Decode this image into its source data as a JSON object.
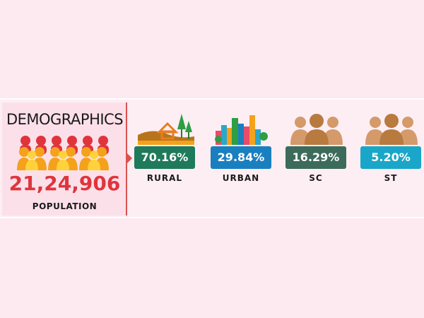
{
  "summary": {
    "title": "DEMOGRAPHICS",
    "population_value": "21,24,906",
    "population_label": "POPULATION",
    "population_value_color": "#e0343c",
    "icon": "people-group-icon"
  },
  "stats": [
    {
      "value": "70.16%",
      "label": "RURAL",
      "color": "#1e7a5a",
      "icon": "rural-landscape-icon"
    },
    {
      "value": "29.84%",
      "label": "URBAN",
      "color": "#1a7fbf",
      "icon": "city-skyline-icon"
    },
    {
      "value": "16.29%",
      "label": "SC",
      "color": "#3d6b5b",
      "icon": "people-group-icon"
    },
    {
      "value": "5.20%",
      "label": "ST",
      "color": "#1aa6c8",
      "icon": "people-group-icon"
    }
  ]
}
